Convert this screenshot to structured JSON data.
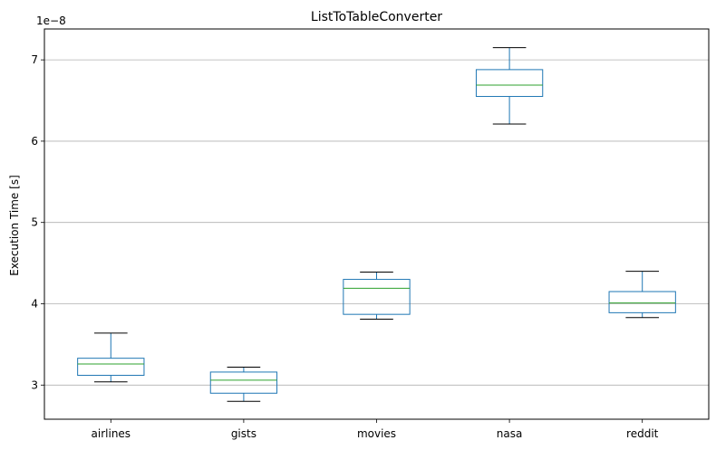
{
  "chart_data": {
    "type": "box",
    "title": "ListToTableConverter",
    "xlabel": "",
    "ylabel": "Execution Time [s]",
    "offset_label": "1e−8",
    "ylim": [
      2.58,
      7.38
    ],
    "yticks": [
      3,
      4,
      5,
      6,
      7
    ],
    "ytick_labels": [
      "3",
      "4",
      "5",
      "6",
      "7"
    ],
    "grid": "y",
    "categories": [
      "airlines",
      "gists",
      "movies",
      "nasa",
      "reddit"
    ],
    "boxes": [
      {
        "name": "airlines",
        "whisker_low": 3.04,
        "q1": 3.12,
        "median": 3.26,
        "q3": 3.33,
        "whisker_high": 3.64
      },
      {
        "name": "gists",
        "whisker_low": 2.8,
        "q1": 2.9,
        "median": 3.06,
        "q3": 3.16,
        "whisker_high": 3.22
      },
      {
        "name": "movies",
        "whisker_low": 3.81,
        "q1": 3.87,
        "median": 4.19,
        "q3": 4.3,
        "whisker_high": 4.39
      },
      {
        "name": "nasa",
        "whisker_low": 6.21,
        "q1": 6.55,
        "median": 6.69,
        "q3": 6.88,
        "whisker_high": 7.15
      },
      {
        "name": "reddit",
        "whisker_low": 3.83,
        "q1": 3.89,
        "median": 4.01,
        "q3": 4.15,
        "whisker_high": 4.4
      }
    ],
    "colors": {
      "box": "#1f77b4",
      "median": "#2ca02c",
      "cap": "#000000",
      "grid": "#b0b0b0",
      "axes": "#000000"
    }
  }
}
